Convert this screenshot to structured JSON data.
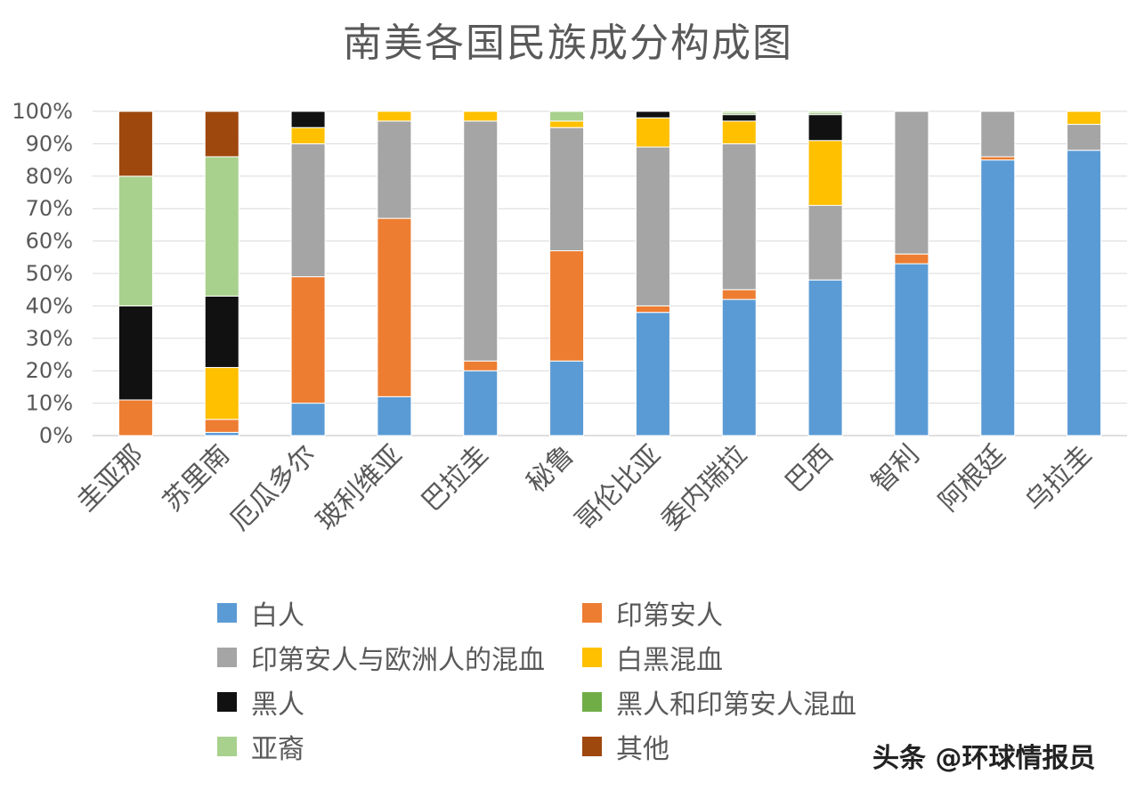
{
  "chart_data": {
    "type": "bar",
    "stacked": true,
    "title": "南美各国民族成分构成图",
    "xlabel": "",
    "ylabel": "",
    "ylim": [
      0,
      100
    ],
    "yticks": [
      "0%",
      "10%",
      "20%",
      "30%",
      "40%",
      "50%",
      "60%",
      "70%",
      "80%",
      "90%",
      "100%"
    ],
    "grid": true,
    "legend_position": "bottom",
    "categories": [
      "圭亚那",
      "苏里南",
      "厄瓜多尔",
      "玻利维亚",
      "巴拉圭",
      "秘鲁",
      "哥伦比亚",
      "委内瑞拉",
      "巴西",
      "智利",
      "阿根廷",
      "乌拉圭"
    ],
    "series": [
      {
        "name": "白人",
        "color": "#5B9BD5",
        "values": [
          0,
          1,
          10,
          12,
          20,
          23,
          38,
          42,
          48,
          53,
          85,
          88
        ]
      },
      {
        "name": "印第安人",
        "color": "#ED7D31",
        "values": [
          11,
          4,
          39,
          55,
          3,
          34,
          2,
          3,
          0,
          3,
          1,
          0
        ]
      },
      {
        "name": "印第安人与欧洲人的混血",
        "color": "#A5A5A5",
        "values": [
          0,
          0,
          41,
          30,
          74,
          38,
          49,
          45,
          23,
          44,
          14,
          8
        ]
      },
      {
        "name": "白黑混血",
        "color": "#FFC000",
        "values": [
          0,
          16,
          5,
          3,
          3,
          2,
          9,
          7,
          20,
          0,
          0,
          4
        ]
      },
      {
        "name": "黑人",
        "color": "#111111",
        "values": [
          29,
          22,
          5,
          0,
          0,
          0,
          2,
          2,
          8,
          0,
          0,
          0
        ]
      },
      {
        "name": "黑人和印第安人混血",
        "color": "#70AD47",
        "values": [
          0,
          0,
          0,
          0.3,
          0,
          0,
          0,
          0.5,
          0.5,
          0,
          0,
          0
        ]
      },
      {
        "name": "亚裔",
        "color": "#A9D18E",
        "values": [
          40,
          43,
          0,
          0,
          0,
          3,
          0,
          0.5,
          0.5,
          0,
          0,
          0
        ]
      },
      {
        "name": "其他",
        "color": "#9E480E",
        "values": [
          20,
          14,
          0,
          0,
          0,
          0,
          0,
          0,
          0,
          0,
          0,
          0
        ]
      }
    ]
  },
  "legend": [
    "白人",
    "印第安人",
    "印第安人与欧洲人的混血",
    "白黑混血",
    "黑人",
    "黑人和印第安人混血",
    "亚裔",
    "其他"
  ],
  "watermark": "头条 @环球情报员"
}
